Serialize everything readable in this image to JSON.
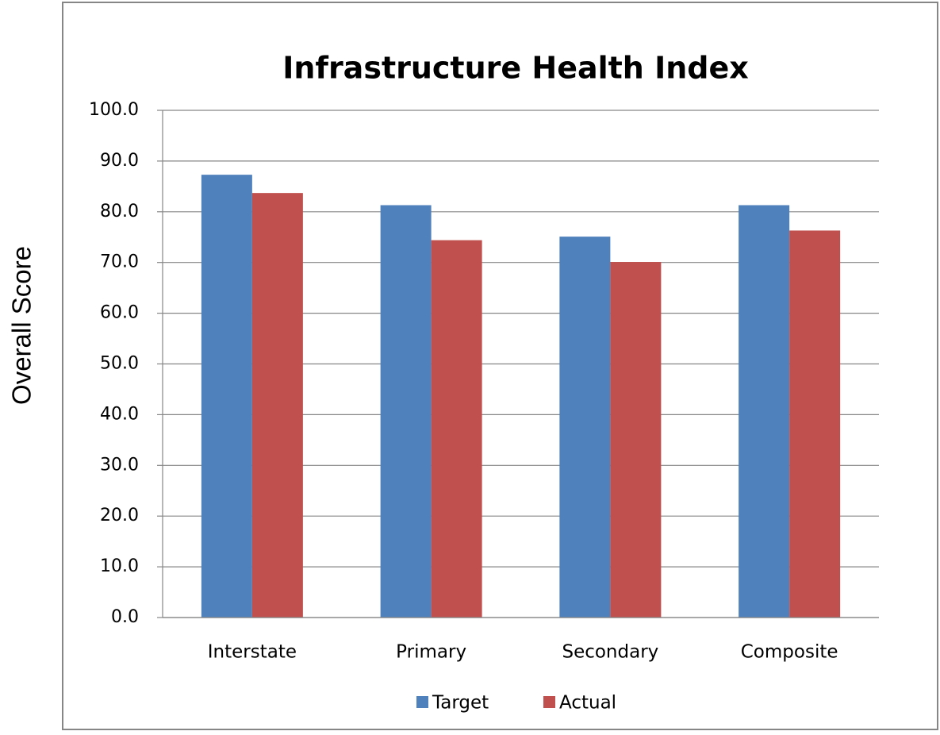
{
  "chart_data": {
    "type": "bar",
    "title": "Infrastructure Health Index",
    "y_label": "Overall Score",
    "categories": [
      "Interstate",
      "Primary",
      "Secondary",
      "Composite"
    ],
    "series": [
      {
        "name": "Target",
        "color": "#4f81bd",
        "values": [
          87.3,
          81.3,
          75.1,
          81.3
        ]
      },
      {
        "name": "Actual",
        "color": "#c0504d",
        "values": [
          83.7,
          74.4,
          70.1,
          76.3
        ]
      }
    ],
    "ylim": [
      0,
      100
    ],
    "yticks": [
      {
        "value": 0,
        "label": "0.0"
      },
      {
        "value": 10,
        "label": "10.0"
      },
      {
        "value": 20,
        "label": "20.0"
      },
      {
        "value": 30,
        "label": "30.0"
      },
      {
        "value": 40,
        "label": "40.0"
      },
      {
        "value": 50,
        "label": "50.0"
      },
      {
        "value": 60,
        "label": "60.0"
      },
      {
        "value": 70,
        "label": "70.0"
      },
      {
        "value": 80,
        "label": "80.0"
      },
      {
        "value": 90,
        "label": "90.0"
      },
      {
        "value": 100,
        "label": "100.0"
      }
    ],
    "grid": true,
    "legend": "bottom"
  }
}
